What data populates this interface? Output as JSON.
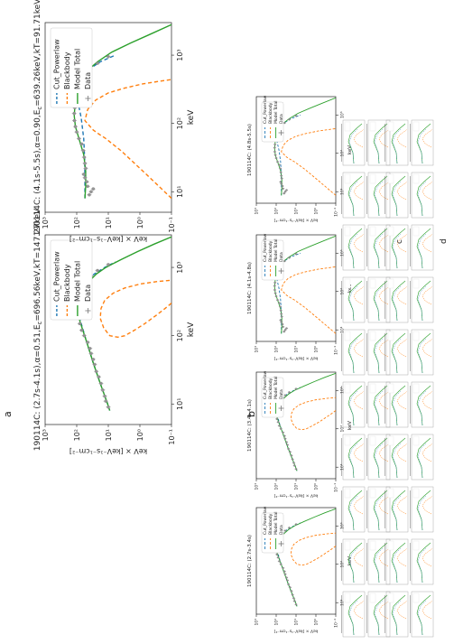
{
  "figure": {
    "panel_labels": [
      "a",
      "b",
      "c",
      "d"
    ]
  },
  "chart_data": [
    {
      "type": "line",
      "panel": "a",
      "title": "190114C: (2.7s-4.1s),α=0.51,E",
      "title_sub_c": "c",
      "title_rest": "=696.56keV,kT=147.27keV",
      "xlabel": "keV",
      "ylabel": "keV × [keV⁻¹s⁻¹cm⁻²]",
      "xscale": "log",
      "yscale": "log",
      "xlim": [
        5,
        3000
      ],
      "ylim": [
        0.1,
        1000
      ],
      "xticks": [
        10,
        100,
        1000
      ],
      "xtick_labels": [
        "10¹",
        "10²",
        "10³"
      ],
      "yticks": [
        0.1,
        1,
        10,
        100,
        1000
      ],
      "ytick_labels": [
        "10⁻¹",
        "10⁰",
        "10¹",
        "10²",
        "10³"
      ],
      "legend_position": "upper right",
      "series": [
        {
          "name": "Cut_Powerlaw",
          "color": "#1f77b4",
          "style": "dashed",
          "x": [
            8,
            10,
            20,
            40,
            80,
            150,
            250,
            400,
            600,
            800,
            1000,
            1200
          ],
          "y": [
            9,
            10.5,
            18,
            30,
            48,
            72,
            90,
            85,
            55,
            28,
            13,
            6
          ]
        },
        {
          "name": "Blackbody",
          "color": "#ff7f0e",
          "style": "dashed",
          "x": [
            300,
            250,
            200,
            150,
            120,
            100,
            95,
            100,
            130,
            180,
            250,
            330,
            420,
            500,
            570,
            620,
            650
          ],
          "y": [
            0.1,
            0.16,
            0.3,
            0.7,
            1.5,
            3,
            5,
            9,
            14,
            18,
            17,
            13,
            7,
            3,
            1,
            0.3,
            0.1
          ]
        },
        {
          "name": "Model Total",
          "color": "#2ca02c",
          "style": "solid",
          "x": [
            8,
            10,
            20,
            40,
            80,
            150,
            250,
            350,
            450,
            600,
            800,
            1000,
            1300,
            1700,
            2200,
            2800
          ],
          "y": [
            9,
            10.5,
            18,
            30,
            48,
            75,
            105,
            100,
            75,
            45,
            24,
            12,
            4,
            1.2,
            0.35,
            0.1
          ]
        },
        {
          "name": "Data",
          "color": "#7f7f7f",
          "style": "markers",
          "x": [
            9,
            11,
            13,
            16,
            20,
            25,
            30,
            38,
            45,
            55,
            65,
            80,
            100,
            120,
            150,
            180,
            220,
            260,
            300,
            350,
            400,
            480,
            560,
            650,
            750,
            900,
            1100
          ],
          "y": [
            10,
            12,
            13,
            15,
            17,
            20,
            24,
            27,
            30,
            35,
            38,
            45,
            58,
            70,
            80,
            92,
            100,
            98,
            95,
            92,
            85,
            70,
            55,
            45,
            35,
            22,
            10
          ]
        }
      ]
    },
    {
      "type": "line",
      "panel": "a-right",
      "title": "190114C: (4.1s-5.5s),α=0.90,E",
      "title_sub_c": "c",
      "title_rest": "=639.26keV,kT=91.71keV",
      "xlabel": "keV",
      "ylabel": "keV × [keV⁻¹s⁻¹cm⁻²]",
      "xscale": "log",
      "yscale": "log",
      "xlim": [
        5,
        3000
      ],
      "ylim": [
        0.1,
        1000
      ],
      "xticks": [
        10,
        100,
        1000
      ],
      "xtick_labels": [
        "10¹",
        "10²",
        "10³"
      ],
      "yticks": [
        0.1,
        1,
        10,
        100,
        1000
      ],
      "ytick_labels": [
        "10⁻¹",
        "10⁰",
        "10¹",
        "10²",
        "10³"
      ],
      "legend_position": "upper right",
      "series": [
        {
          "name": "Cut_Powerlaw",
          "color": "#1f77b4",
          "style": "dashed",
          "x": [
            8,
            15,
            30,
            60,
            120,
            200,
            300,
            450,
            600,
            800,
            1000
          ],
          "y": [
            55,
            55,
            56,
            60,
            72,
            90,
            100,
            80,
            45,
            18,
            6
          ]
        },
        {
          "name": "Blackbody",
          "color": "#ff7f0e",
          "style": "dashed",
          "x": [
            8,
            12,
            20,
            40,
            60,
            70,
            80,
            110,
            160,
            220,
            280,
            330,
            380,
            420,
            440
          ],
          "y": [
            0.1,
            0.25,
            0.8,
            4,
            12,
            20,
            30,
            55,
            45,
            25,
            10,
            3,
            0.8,
            0.2,
            0.1
          ]
        },
        {
          "name": "Model Total",
          "color": "#2ca02c",
          "style": "solid",
          "x": [
            8,
            12,
            20,
            35,
            60,
            90,
            130,
            200,
            300,
            450,
            600,
            800,
            1100,
            1500,
            2000,
            2800
          ],
          "y": [
            55,
            52,
            52,
            60,
            85,
            110,
            120,
            112,
            100,
            75,
            45,
            22,
            8,
            2,
            0.5,
            0.1
          ]
        },
        {
          "name": "Data",
          "color": "#7f7f7f",
          "style": "markers",
          "x": [
            9,
            10,
            11,
            12,
            14,
            16,
            18,
            22,
            26,
            32,
            40,
            50,
            60,
            75,
            90,
            110,
            140,
            170,
            210,
            260,
            320,
            400,
            500,
            620,
            760,
            950
          ],
          "y": [
            40,
            35,
            30,
            45,
            48,
            55,
            60,
            52,
            55,
            58,
            62,
            70,
            85,
            100,
            110,
            118,
            120,
            115,
            110,
            100,
            90,
            75,
            55,
            38,
            22,
            10
          ]
        }
      ]
    },
    {
      "type": "line",
      "panel": "b",
      "title": "190114C: (2.7s-3.4s)",
      "xlabel": "keV",
      "ylabel": "keV × [keV⁻¹s⁻¹cm⁻²]",
      "legend": [
        "Cut_Powerlaw",
        "Blackbody",
        "Model Total",
        "Data"
      ]
    },
    {
      "type": "line",
      "panel": "b",
      "title": "190114C: (3.4s-4.1s)",
      "xlabel": "keV",
      "ylabel": "keV × [keV⁻¹s⁻¹cm⁻²]",
      "legend": [
        "Cut_Powerlaw",
        "Blackbody",
        "Model Total",
        "Data"
      ]
    },
    {
      "type": "line",
      "panel": "b",
      "title": "190114C: (4.1s-4.8s)",
      "xlabel": "keV",
      "ylabel": "keV × [keV⁻¹s⁻¹cm⁻²]",
      "legend": [
        "Cut_Powerlaw",
        "Blackbody",
        "Model Total",
        "Data"
      ]
    },
    {
      "type": "line",
      "panel": "b",
      "title": "190114C: (4.8s-5.5s)",
      "xlabel": "keV",
      "ylabel": "keV × [keV⁻¹s⁻¹cm⁻²]",
      "legend": [
        "Cut_Powerlaw",
        "Blackbody",
        "Model Total",
        "Data"
      ]
    }
  ]
}
